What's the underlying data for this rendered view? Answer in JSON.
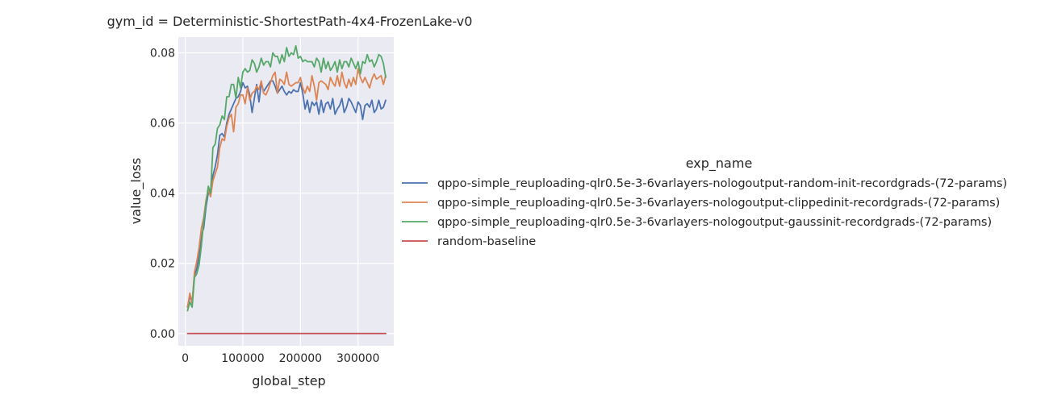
{
  "chart_data": {
    "type": "line",
    "title": "gym_id = Deterministic-ShortestPath-4x4-FrozenLake-v0",
    "xlabel": "global_step",
    "ylabel": "value_loss",
    "xlim": [
      -12000,
      362000
    ],
    "ylim": [
      -0.0035,
      0.0845
    ],
    "xticks": [
      0,
      100000,
      200000,
      300000
    ],
    "xtick_labels": [
      "0",
      "100000",
      "200000",
      "300000"
    ],
    "yticks": [
      0.0,
      0.02,
      0.04,
      0.06,
      0.08
    ],
    "ytick_labels": [
      "0.00",
      "0.02",
      "0.04",
      "0.06",
      "0.08"
    ],
    "grid": true,
    "legend": {
      "title": "exp_name",
      "placement": "right"
    },
    "colors": [
      "#4c72b0",
      "#dd8452",
      "#55a868",
      "#c44e52"
    ],
    "series": [
      {
        "name": "qppo-simple_reuploading-qlr0.5e-3-6varlayers-nologoutput-random-init-recordgrads-(72-params)",
        "x": [
          4000,
          8000,
          12000,
          16000,
          20000,
          24000,
          28000,
          32000,
          36000,
          40000,
          44000,
          48000,
          52000,
          56000,
          60000,
          64000,
          68000,
          72000,
          76000,
          80000,
          84000,
          88000,
          92000,
          96000,
          100000,
          104000,
          108000,
          112000,
          116000,
          120000,
          124000,
          128000,
          132000,
          136000,
          140000,
          144000,
          148000,
          152000,
          156000,
          160000,
          164000,
          168000,
          172000,
          176000,
          180000,
          184000,
          188000,
          192000,
          196000,
          200000,
          204000,
          208000,
          212000,
          216000,
          220000,
          224000,
          228000,
          232000,
          236000,
          240000,
          244000,
          248000,
          252000,
          256000,
          260000,
          264000,
          268000,
          272000,
          276000,
          280000,
          284000,
          288000,
          292000,
          296000,
          300000,
          304000,
          308000,
          312000,
          316000,
          320000,
          324000,
          328000,
          332000,
          336000,
          340000,
          344000,
          348000
        ],
        "y": [
          0.0075,
          0.0105,
          0.009,
          0.0165,
          0.0185,
          0.022,
          0.028,
          0.03,
          0.036,
          0.04,
          0.04,
          0.045,
          0.0475,
          0.051,
          0.0565,
          0.057,
          0.056,
          0.06,
          0.0625,
          0.064,
          0.0655,
          0.067,
          0.0675,
          0.069,
          0.0715,
          0.07,
          0.0705,
          0.068,
          0.063,
          0.067,
          0.071,
          0.066,
          0.0715,
          0.069,
          0.07,
          0.071,
          0.072,
          0.072,
          0.0705,
          0.0685,
          0.0695,
          0.0705,
          0.069,
          0.068,
          0.069,
          0.0685,
          0.0695,
          0.069,
          0.069,
          0.0715,
          0.0685,
          0.064,
          0.0665,
          0.063,
          0.066,
          0.065,
          0.066,
          0.0625,
          0.0665,
          0.063,
          0.0655,
          0.066,
          0.064,
          0.067,
          0.0625,
          0.064,
          0.065,
          0.067,
          0.063,
          0.0645,
          0.067,
          0.066,
          0.0645,
          0.063,
          0.066,
          0.065,
          0.061,
          0.065,
          0.0655,
          0.0645,
          0.0665,
          0.063,
          0.064,
          0.0665,
          0.064,
          0.0645,
          0.0665
        ]
      },
      {
        "name": "qppo-simple_reuploading-qlr0.5e-3-6varlayers-nologoutput-clippedinit-recordgrads-(72-params)",
        "x": [
          4000,
          8000,
          12000,
          16000,
          20000,
          24000,
          28000,
          32000,
          36000,
          40000,
          44000,
          48000,
          52000,
          56000,
          60000,
          64000,
          68000,
          72000,
          76000,
          80000,
          84000,
          88000,
          92000,
          96000,
          100000,
          104000,
          108000,
          112000,
          116000,
          120000,
          124000,
          128000,
          132000,
          136000,
          140000,
          144000,
          148000,
          152000,
          156000,
          160000,
          164000,
          168000,
          172000,
          176000,
          180000,
          184000,
          188000,
          192000,
          196000,
          200000,
          204000,
          208000,
          212000,
          216000,
          220000,
          224000,
          228000,
          232000,
          236000,
          240000,
          244000,
          248000,
          252000,
          256000,
          260000,
          264000,
          268000,
          272000,
          276000,
          280000,
          284000,
          288000,
          292000,
          296000,
          300000,
          304000,
          308000,
          312000,
          316000,
          320000,
          324000,
          328000,
          332000,
          336000,
          340000,
          344000,
          348000
        ],
        "y": [
          0.0075,
          0.0115,
          0.0085,
          0.0175,
          0.0205,
          0.0245,
          0.03,
          0.033,
          0.038,
          0.041,
          0.039,
          0.0435,
          0.0455,
          0.0475,
          0.053,
          0.0555,
          0.055,
          0.059,
          0.0615,
          0.0625,
          0.0575,
          0.0645,
          0.0655,
          0.068,
          0.068,
          0.0655,
          0.07,
          0.0665,
          0.0685,
          0.069,
          0.0705,
          0.0695,
          0.072,
          0.0685,
          0.068,
          0.0695,
          0.0715,
          0.0735,
          0.0745,
          0.0685,
          0.0725,
          0.072,
          0.071,
          0.0745,
          0.071,
          0.0705,
          0.071,
          0.0715,
          0.0715,
          0.073,
          0.07,
          0.0685,
          0.0705,
          0.069,
          0.0735,
          0.0705,
          0.0665,
          0.0715,
          0.072,
          0.0715,
          0.071,
          0.0695,
          0.073,
          0.0715,
          0.0705,
          0.0735,
          0.0705,
          0.0745,
          0.0715,
          0.07,
          0.0725,
          0.0705,
          0.073,
          0.071,
          0.0755,
          0.073,
          0.0715,
          0.073,
          0.0715,
          0.07,
          0.0725,
          0.074,
          0.0725,
          0.073,
          0.0735,
          0.071,
          0.0735
        ]
      },
      {
        "name": "qppo-simple_reuploading-qlr0.5e-3-6varlayers-nologoutput-gaussinit-recordgrads-(72-params)",
        "x": [
          4000,
          8000,
          12000,
          16000,
          20000,
          24000,
          28000,
          32000,
          36000,
          40000,
          44000,
          48000,
          52000,
          56000,
          60000,
          64000,
          68000,
          72000,
          76000,
          80000,
          84000,
          88000,
          92000,
          96000,
          100000,
          104000,
          108000,
          112000,
          116000,
          120000,
          124000,
          128000,
          132000,
          136000,
          140000,
          144000,
          148000,
          152000,
          156000,
          160000,
          164000,
          168000,
          172000,
          176000,
          180000,
          184000,
          188000,
          192000,
          196000,
          200000,
          204000,
          208000,
          212000,
          216000,
          220000,
          224000,
          228000,
          232000,
          236000,
          240000,
          244000,
          248000,
          252000,
          256000,
          260000,
          264000,
          268000,
          272000,
          276000,
          280000,
          284000,
          288000,
          292000,
          296000,
          300000,
          304000,
          308000,
          312000,
          316000,
          320000,
          324000,
          328000,
          332000,
          336000,
          340000,
          344000,
          348000
        ],
        "y": [
          0.0065,
          0.009,
          0.0075,
          0.016,
          0.017,
          0.0195,
          0.025,
          0.032,
          0.037,
          0.042,
          0.04,
          0.053,
          0.054,
          0.0585,
          0.0595,
          0.062,
          0.061,
          0.0675,
          0.0675,
          0.071,
          0.071,
          0.067,
          0.073,
          0.07,
          0.0745,
          0.0755,
          0.0745,
          0.075,
          0.078,
          0.077,
          0.0745,
          0.076,
          0.0785,
          0.0765,
          0.0775,
          0.0775,
          0.076,
          0.08,
          0.079,
          0.079,
          0.077,
          0.0795,
          0.0775,
          0.0815,
          0.079,
          0.08,
          0.0795,
          0.082,
          0.0785,
          0.079,
          0.0775,
          0.078,
          0.0775,
          0.0775,
          0.0775,
          0.076,
          0.0785,
          0.0775,
          0.0745,
          0.0785,
          0.0755,
          0.0775,
          0.075,
          0.076,
          0.0775,
          0.0745,
          0.078,
          0.0755,
          0.0775,
          0.0775,
          0.076,
          0.0785,
          0.077,
          0.0755,
          0.0775,
          0.074,
          0.0775,
          0.077,
          0.0795,
          0.0775,
          0.078,
          0.076,
          0.0775,
          0.0795,
          0.079,
          0.077,
          0.073
        ]
      },
      {
        "name": "random-baseline",
        "x": [
          4000,
          348000
        ],
        "y": [
          0.0,
          0.0
        ]
      }
    ]
  }
}
